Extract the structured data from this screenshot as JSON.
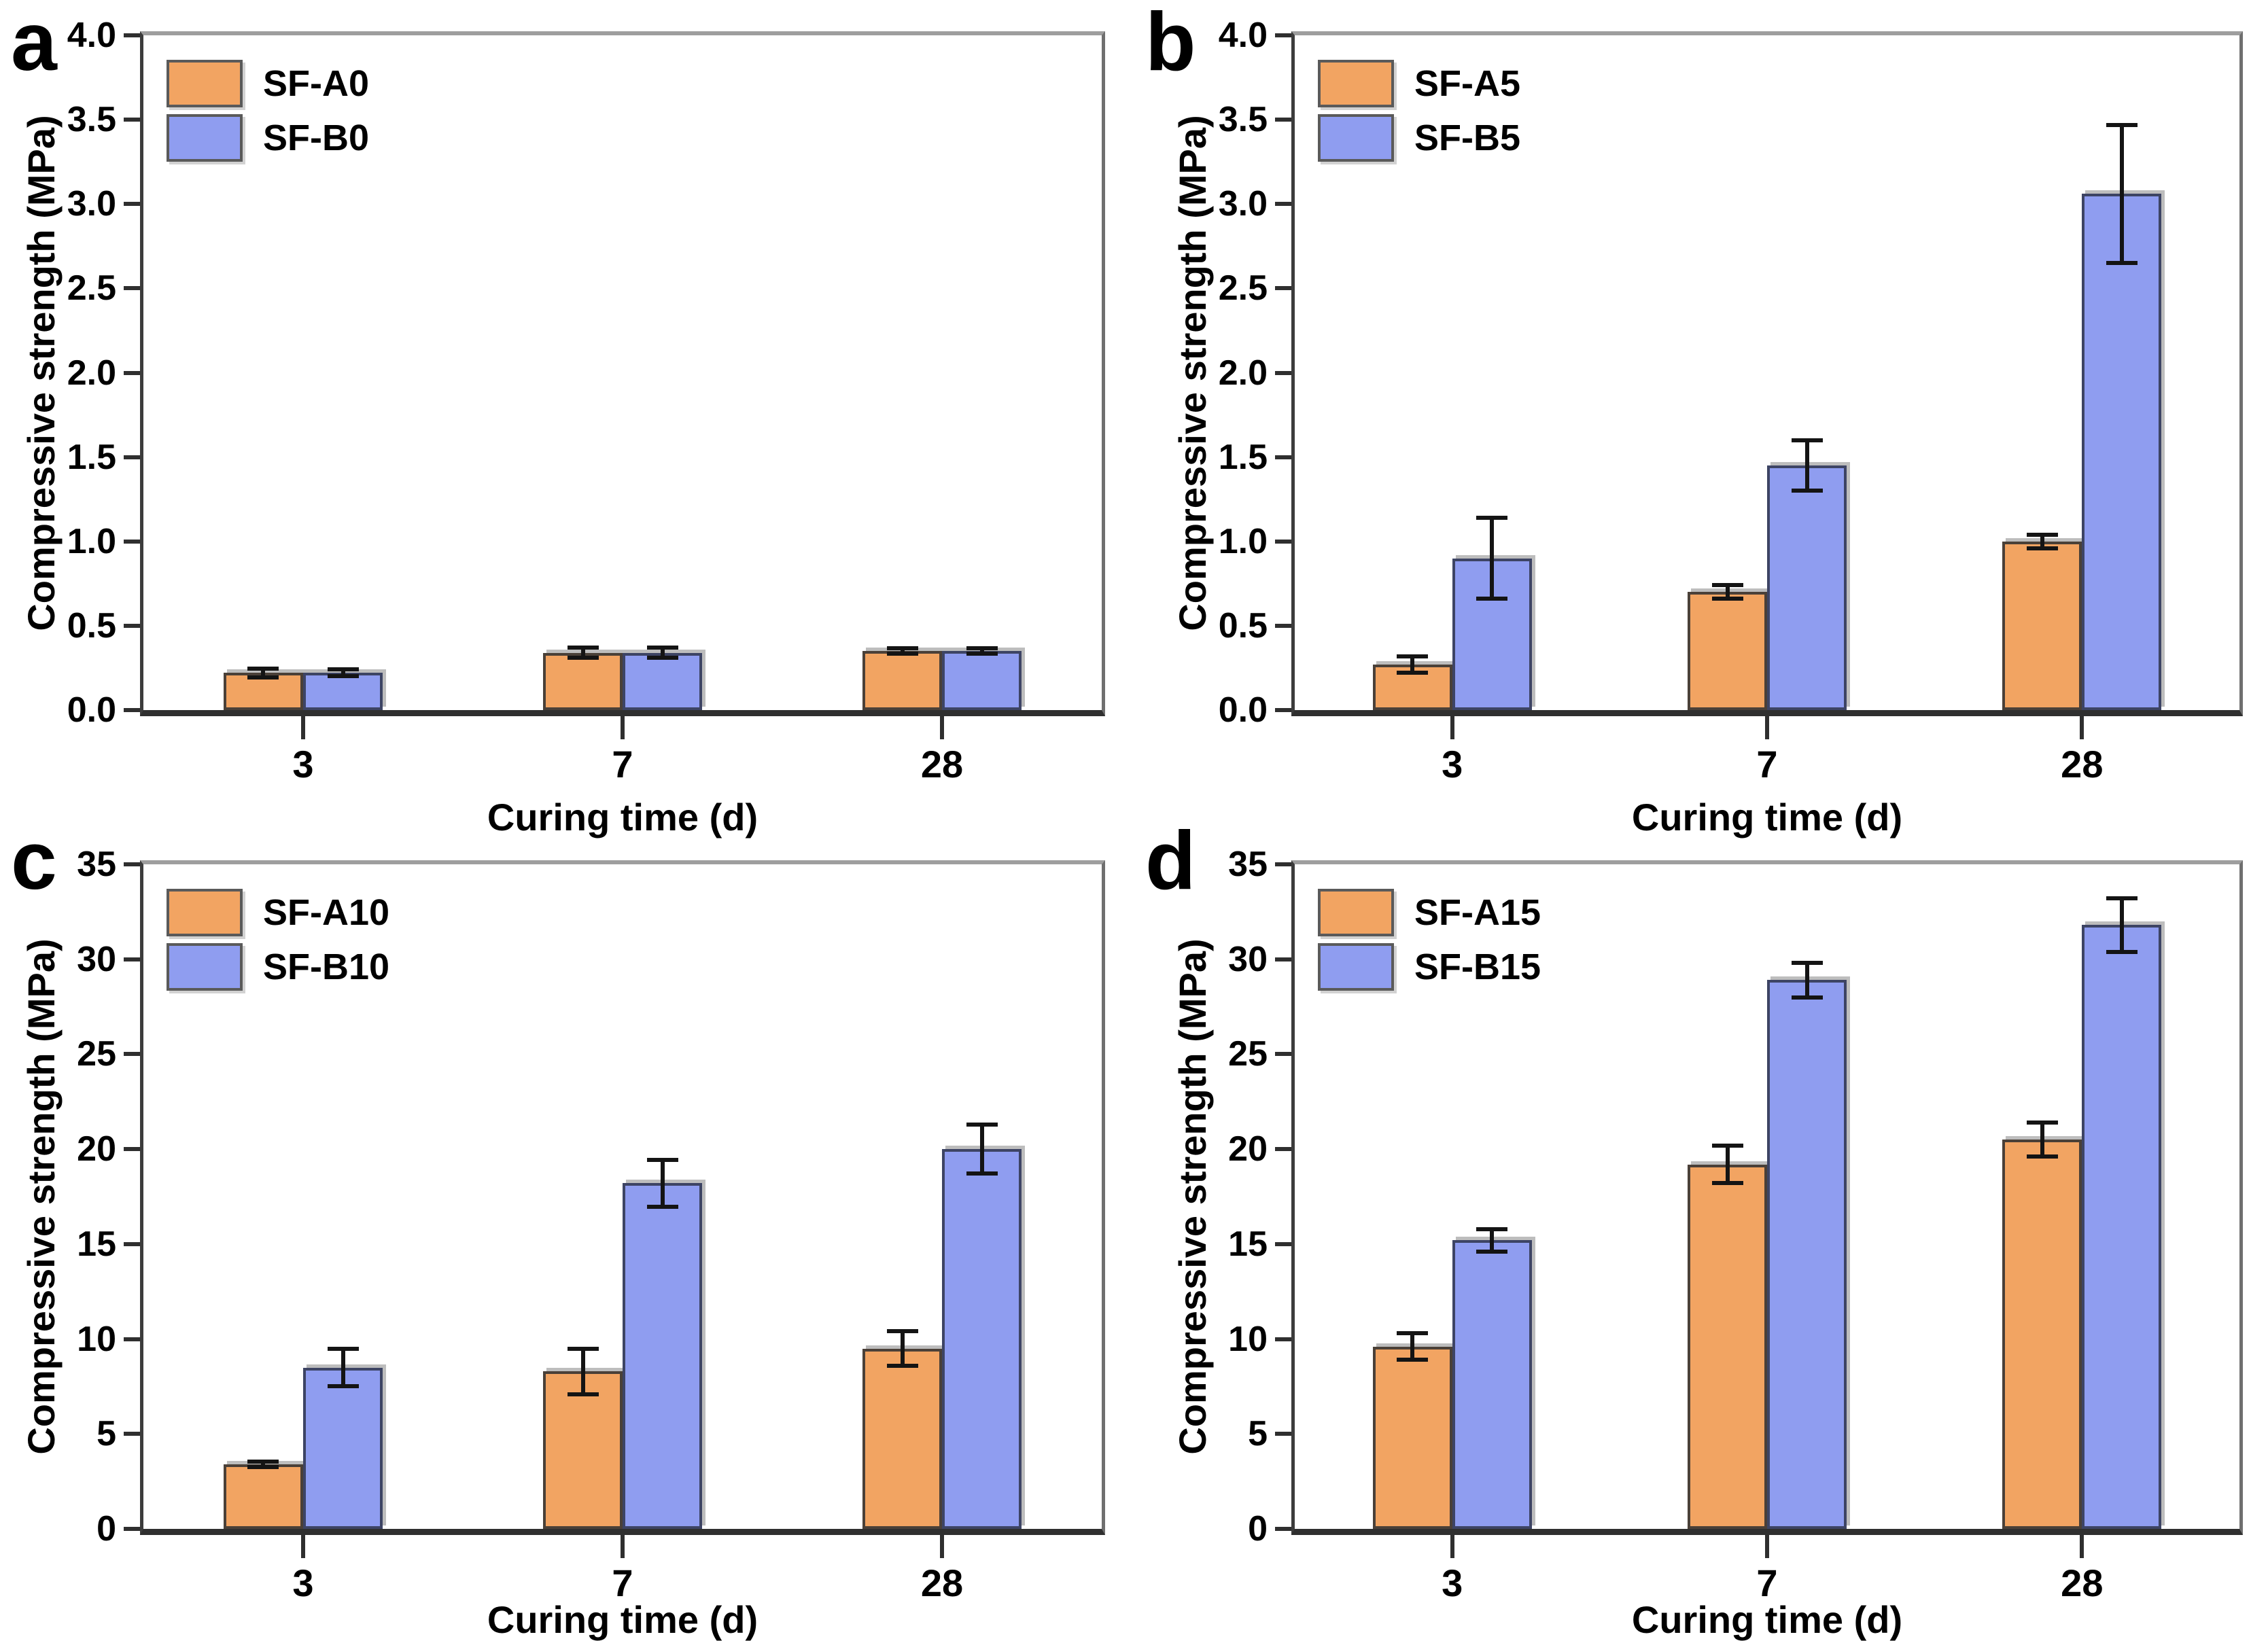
{
  "figure": {
    "description": "Four-panel bar chart figure of compressive strength versus curing time",
    "background": "#ffffff"
  },
  "colors": {
    "orange_fill": "#F2A462",
    "orange_border": "#4a4038",
    "blue_fill": "#8F9DF0",
    "blue_border": "#3d4464",
    "error_bar": "#141414",
    "text": "#000000"
  },
  "chart_data": [
    {
      "panel": "a",
      "type": "bar",
      "xlabel": "Curing time (d)",
      "ylabel": "Compressive strength (MPa)",
      "categories": [
        "3",
        "7",
        "28"
      ],
      "ylim": [
        0,
        4.0
      ],
      "ytick_step": 0.5,
      "yticks": [
        "0.0",
        "0.5",
        "1.0",
        "1.5",
        "2.0",
        "2.5",
        "3.0",
        "3.5",
        "4.0"
      ],
      "legend_position": "top-left",
      "grid": false,
      "series": [
        {
          "name": "SF-A0",
          "color": "orange",
          "values": [
            0.22,
            0.34,
            0.35
          ],
          "errors": [
            0.025,
            0.03,
            0.015
          ]
        },
        {
          "name": "SF-B0",
          "color": "blue",
          "values": [
            0.22,
            0.34,
            0.35
          ],
          "errors": [
            0.02,
            0.03,
            0.015
          ]
        }
      ]
    },
    {
      "panel": "b",
      "type": "bar",
      "xlabel": "Curing time (d)",
      "ylabel": "Compressive strength (MPa)",
      "categories": [
        "3",
        "7",
        "28"
      ],
      "ylim": [
        0,
        4.0
      ],
      "ytick_step": 0.5,
      "yticks": [
        "0.0",
        "0.5",
        "1.0",
        "1.5",
        "2.0",
        "2.5",
        "3.0",
        "3.5",
        "4.0"
      ],
      "legend_position": "top-left",
      "grid": false,
      "series": [
        {
          "name": "SF-A5",
          "color": "orange",
          "values": [
            0.27,
            0.7,
            1.0
          ],
          "errors": [
            0.05,
            0.04,
            0.04
          ]
        },
        {
          "name": "SF-B5",
          "color": "blue",
          "values": [
            0.9,
            1.45,
            3.06
          ],
          "errors": [
            0.24,
            0.15,
            0.41
          ]
        }
      ]
    },
    {
      "panel": "c",
      "type": "bar",
      "xlabel": "Curing time (d)",
      "ylabel": "Compressive strength (MPa)",
      "categories": [
        "3",
        "7",
        "28"
      ],
      "ylim": [
        0,
        35
      ],
      "ytick_step": 5,
      "yticks": [
        "0",
        "5",
        "10",
        "15",
        "20",
        "25",
        "30",
        "35"
      ],
      "legend_position": "top-left",
      "grid": false,
      "series": [
        {
          "name": "SF-A10",
          "color": "orange",
          "values": [
            3.4,
            8.3,
            9.5
          ],
          "errors": [
            0.15,
            1.2,
            0.9
          ]
        },
        {
          "name": "SF-B10",
          "color": "blue",
          "values": [
            8.5,
            18.2,
            20.0
          ],
          "errors": [
            1.0,
            1.25,
            1.3
          ]
        }
      ]
    },
    {
      "panel": "d",
      "type": "bar",
      "xlabel": "Curing time (d)",
      "ylabel": "Compressive strength (MPa)",
      "categories": [
        "3",
        "7",
        "28"
      ],
      "ylim": [
        0,
        35
      ],
      "ytick_step": 5,
      "yticks": [
        "0",
        "5",
        "10",
        "15",
        "20",
        "25",
        "30",
        "35"
      ],
      "legend_position": "top-left",
      "grid": false,
      "series": [
        {
          "name": "SF-A15",
          "color": "orange",
          "values": [
            9.6,
            19.2,
            20.5
          ],
          "errors": [
            0.7,
            1.0,
            0.9
          ]
        },
        {
          "name": "SF-B15",
          "color": "blue",
          "values": [
            15.2,
            28.9,
            31.8
          ],
          "errors": [
            0.6,
            0.9,
            1.4
          ]
        }
      ]
    }
  ]
}
